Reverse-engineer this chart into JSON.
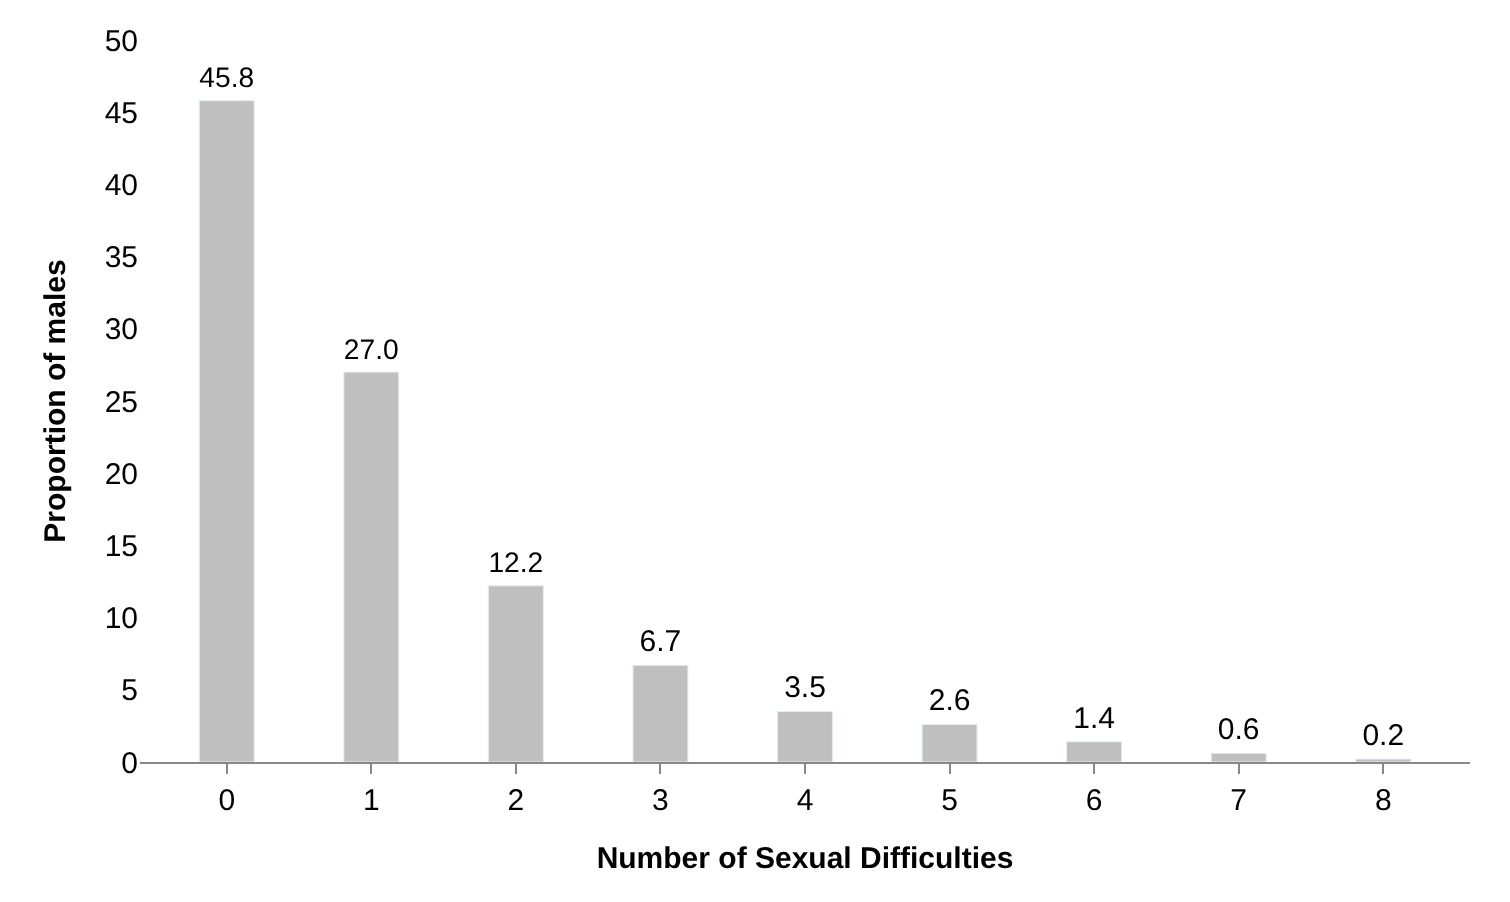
{
  "chart_data": {
    "type": "bar",
    "xlabel": "Number of Sexual Difficulties",
    "ylabel": "Proportion of males",
    "categories": [
      "0",
      "1",
      "2",
      "3",
      "4",
      "5",
      "6",
      "7",
      "8"
    ],
    "values": [
      45.8,
      27.0,
      12.2,
      6.7,
      3.5,
      2.6,
      1.4,
      0.6,
      0.2
    ],
    "value_labels": [
      "45.8",
      "27.0",
      "12.2",
      "6.7",
      "3.5",
      "2.6",
      "1.4",
      "0.6",
      "0.2"
    ],
    "color": "#bfbfbf",
    "ylim": [
      0,
      50
    ],
    "yticks": [
      0,
      5,
      10,
      15,
      20,
      25,
      30,
      35,
      40,
      45,
      50
    ]
  }
}
